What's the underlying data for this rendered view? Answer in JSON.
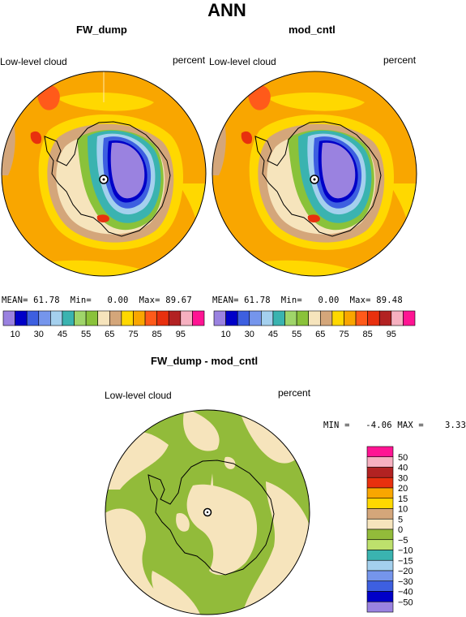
{
  "title": "ANN",
  "colors": {
    "ice": "#9a82e0",
    "land_dark": "#d4a67a",
    "ocean_orange": "#f9a600",
    "ocean_yellow": "#ffd800",
    "diff_green": "#92bb3a",
    "diff_cream": "#f6e4bc",
    "coast": "#000000"
  },
  "panels": [
    {
      "title": "FW_dump",
      "left_label": "Low-level cloud",
      "right_label": "percent",
      "stats": {
        "mean_label": "MEAN=",
        "mean": "61.78",
        "min_label": "Min=",
        "min": "0.00",
        "max_label": "Max=",
        "max": "89.67"
      }
    },
    {
      "title": "mod_cntl",
      "left_label": "Low-level cloud",
      "right_label": "percent",
      "stats": {
        "mean_label": "MEAN=",
        "mean": "61.78",
        "min_label": "Min=",
        "min": "0.00",
        "max_label": "Max=",
        "max": "89.48"
      }
    }
  ],
  "diff_panel": {
    "title": "FW_dump - mod_cntl",
    "left_label": "Low-level cloud",
    "right_label": "percent",
    "stats": {
      "min_label": "MIN =",
      "min": "-4.06",
      "max_label": "MAX =",
      "max": "3.33"
    }
  },
  "chart_data": [
    {
      "type": "heatmap",
      "projection": "polar stereographic (south pole)",
      "field": "Low-level cloud",
      "units": "percent",
      "title": "FW_dump",
      "stats": {
        "mean": 61.78,
        "min": 0.0,
        "max": 89.67
      },
      "colorbar": {
        "orientation": "horizontal",
        "levels": [
          10,
          15,
          20,
          25,
          30,
          35,
          40,
          45,
          50,
          55,
          60,
          65,
          70,
          75,
          80,
          85,
          90,
          95
        ],
        "tick_labels": [
          "10",
          "30",
          "45",
          "55",
          "65",
          "75",
          "85",
          "95"
        ],
        "colors": [
          "#9a82e0",
          "#0000c8",
          "#3d5fe0",
          "#7595ec",
          "#a4d0ee",
          "#3ab3b0",
          "#9fd56a",
          "#8ac23a",
          "#f6e4bc",
          "#d4a67a",
          "#ffd800",
          "#f9a600",
          "#ff5a1a",
          "#e8300e",
          "#b22222",
          "#f6b0c0",
          "#ff1493"
        ]
      }
    },
    {
      "type": "heatmap",
      "projection": "polar stereographic (south pole)",
      "field": "Low-level cloud",
      "units": "percent",
      "title": "mod_cntl",
      "stats": {
        "mean": 61.78,
        "min": 0.0,
        "max": 89.48
      },
      "colorbar": {
        "orientation": "horizontal",
        "levels": [
          10,
          15,
          20,
          25,
          30,
          35,
          40,
          45,
          50,
          55,
          60,
          65,
          70,
          75,
          80,
          85,
          90,
          95
        ],
        "tick_labels": [
          "10",
          "30",
          "45",
          "55",
          "65",
          "75",
          "85",
          "95"
        ],
        "colors": [
          "#9a82e0",
          "#0000c8",
          "#3d5fe0",
          "#7595ec",
          "#a4d0ee",
          "#3ab3b0",
          "#9fd56a",
          "#8ac23a",
          "#f6e4bc",
          "#d4a67a",
          "#ffd800",
          "#f9a600",
          "#ff5a1a",
          "#e8300e",
          "#b22222",
          "#f6b0c0",
          "#ff1493"
        ]
      }
    },
    {
      "type": "heatmap",
      "projection": "polar stereographic (south pole)",
      "field": "Low-level cloud",
      "units": "percent",
      "title": "FW_dump - mod_cntl",
      "stats": {
        "min": -4.06,
        "max": 3.33
      },
      "colorbar": {
        "orientation": "vertical",
        "levels": [
          50,
          40,
          30,
          20,
          15,
          10,
          5,
          0,
          -5,
          -10,
          -15,
          -20,
          -30,
          -40,
          -50
        ],
        "tick_labels": [
          "50",
          "40",
          "30",
          "20",
          "15",
          "10",
          "5",
          "0",
          "−5",
          "−10",
          "−15",
          "−20",
          "−30",
          "−40",
          "−50"
        ],
        "colors": [
          "#ff1493",
          "#f6b0c0",
          "#b22222",
          "#e8300e",
          "#f9a600",
          "#ffd800",
          "#d4a67a",
          "#f6e4bc",
          "#92bb3a",
          "#bde06c",
          "#3ab3b0",
          "#a4d0ee",
          "#7595ec",
          "#3d5fe0",
          "#0000c8",
          "#9a82e0"
        ]
      }
    }
  ]
}
